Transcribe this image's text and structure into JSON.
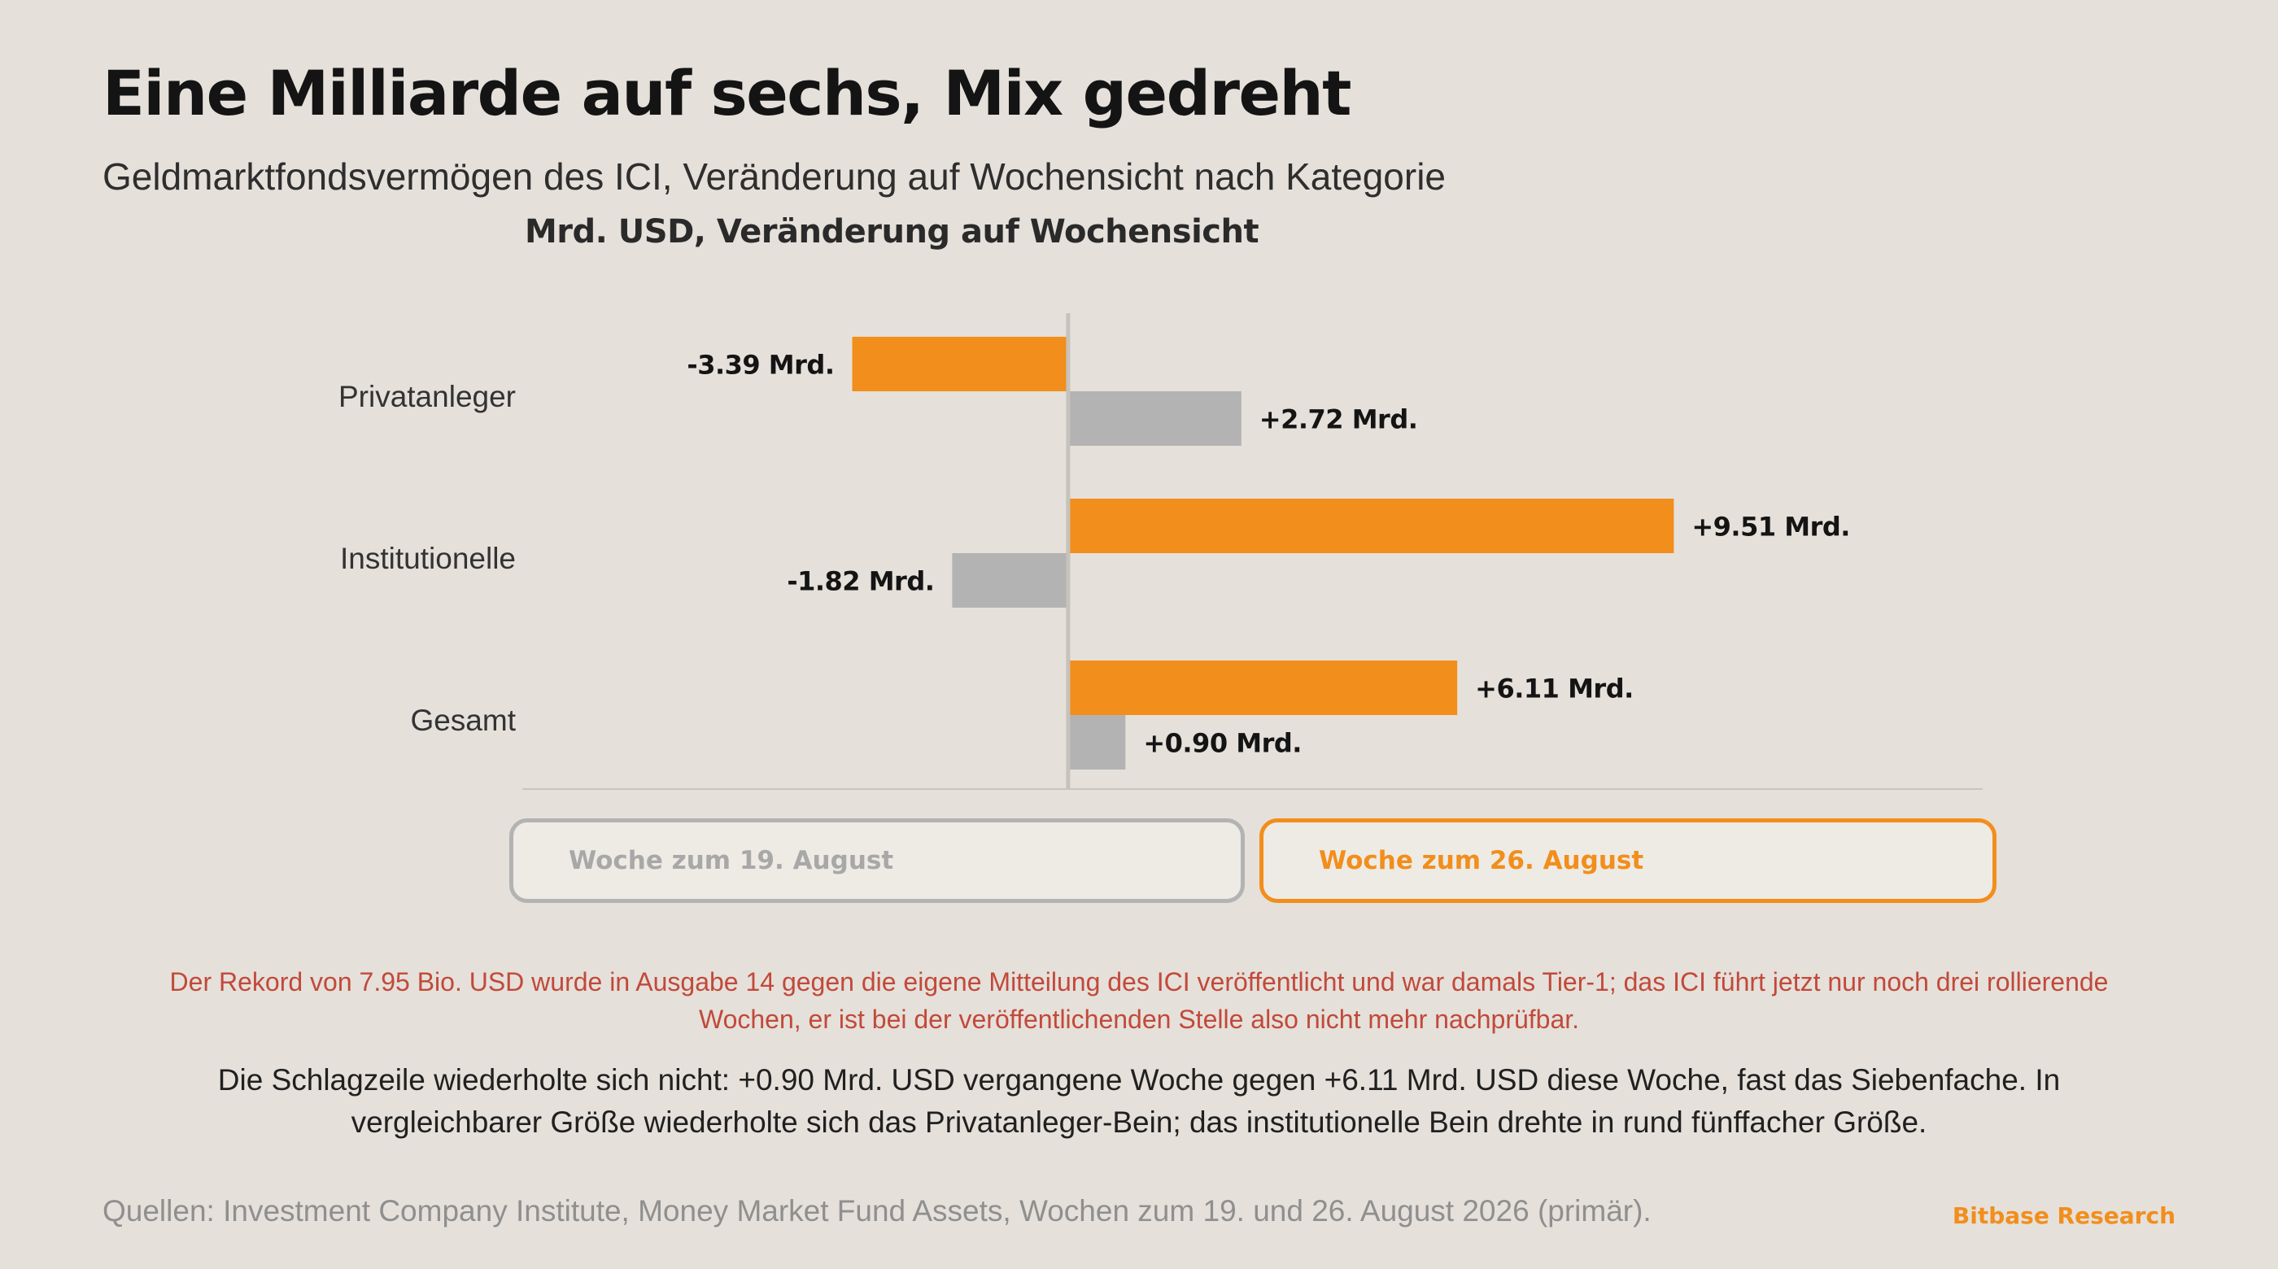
{
  "header": {
    "title": "Eine Milliarde auf sechs, Mix gedreht",
    "subtitle": "Geldmarktfondsvermögen des ICI, Veränderung auf Wochensicht nach Kategorie"
  },
  "chart_data": {
    "type": "bar",
    "orientation": "horizontal",
    "unit_label": "Mrd. USD, Veränderung auf Wochensicht",
    "categories": [
      "Privatanleger",
      "Institutionelle",
      "Gesamt"
    ],
    "series": [
      {
        "name": "Woche zum 26. August",
        "color": "#f28e1c",
        "values": [
          -3.39,
          9.51,
          6.11
        ],
        "labels": [
          "-3.39 Mrd.",
          "+9.51 Mrd.",
          "+6.11 Mrd."
        ]
      },
      {
        "name": "Woche zum 19. August",
        "color": "#b3b3b3",
        "values": [
          2.72,
          -1.82,
          0.9
        ],
        "labels": [
          "+2.72 Mrd.",
          "-1.82 Mrd.",
          "+0.90 Mrd."
        ]
      }
    ],
    "xlim": [
      -8.57,
      14.36
    ],
    "grid": false,
    "legend_placement": "bottom"
  },
  "legend": {
    "week1": "Woche zum 19. August",
    "week2": "Woche zum 26. August"
  },
  "note": "Der Rekord von 7.95 Bio. USD wurde in Ausgabe 14 gegen die eigene Mitteilung des ICI veröffentlicht und war damals Tier-1; das ICI führt jetzt nur noch drei rollierende Wochen, er ist bei der veröffentlichenden Stelle also nicht mehr nachprüfbar.",
  "summary": "Die Schlagzeile wiederholte sich nicht: +0.90 Mrd. USD vergangene Woche gegen +6.11 Mrd. USD diese Woche, fast das Siebenfache. In vergleichbarer Größe wiederholte sich das Privatanleger-Bein; das institutionelle Bein drehte in rund fünffacher Größe.",
  "footer": {
    "sources": "Quellen: Investment Company Institute, Money Market Fund Assets, Wochen zum 19. und 26. August 2026 (primär).",
    "brand": "Bitbase Research"
  }
}
